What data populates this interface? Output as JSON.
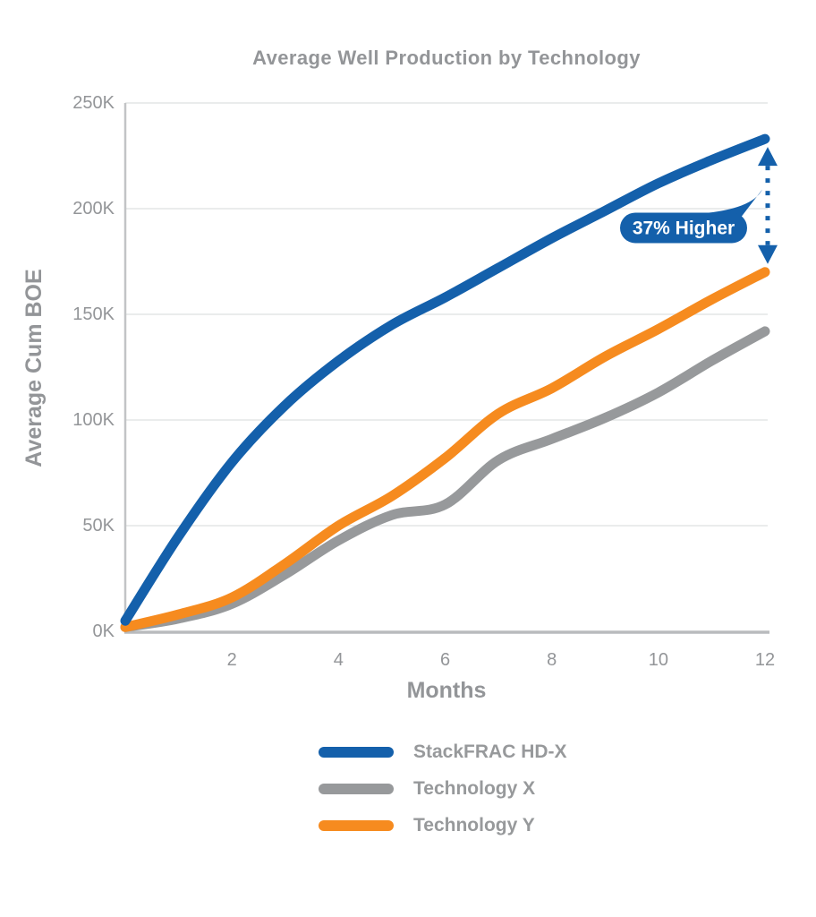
{
  "title": "Average Well Production by Technology",
  "chart_data": {
    "type": "line",
    "title": "Average Well Production by Technology",
    "xlabel": "Months",
    "ylabel": "Average Cum BOE",
    "xlim": [
      0,
      12
    ],
    "ylim": [
      0,
      250
    ],
    "grid": "horizontal-only",
    "legend_position": "bottom",
    "x": [
      0,
      1,
      2,
      3,
      4,
      5,
      6,
      7,
      8,
      9,
      10,
      11,
      12
    ],
    "x_ticks": [
      2,
      4,
      6,
      8,
      10,
      12
    ],
    "x_tick_labels": [
      "2",
      "4",
      "6",
      "8",
      "10",
      "12"
    ],
    "y_ticks": [
      0,
      50,
      100,
      150,
      200,
      250
    ],
    "y_tick_labels": [
      "0K",
      "50K",
      "100K",
      "150K",
      "200K",
      "250K"
    ],
    "value_unit": "thousand BOE",
    "series": [
      {
        "name": "StackFRAC HD-X",
        "color": "#1460AB",
        "values": [
          5,
          45,
          80,
          107,
          128,
          145,
          158,
          172,
          186,
          199,
          212,
          223,
          233
        ]
      },
      {
        "name": "Technology X",
        "color": "#97999B",
        "values": [
          2,
          6,
          13,
          27,
          43,
          55,
          60,
          81,
          91,
          101,
          113,
          128,
          142
        ]
      },
      {
        "name": "Technology Y",
        "color": "#F68B1F",
        "values": [
          2,
          8,
          16,
          32,
          50,
          64,
          82,
          103,
          115,
          130,
          143,
          157,
          170
        ]
      }
    ],
    "annotation": {
      "label": "37% Higher",
      "at_month": 12,
      "from_series": "StackFRAC HD-X",
      "to_series": "Technology Y",
      "bubble_color": "#1460AB",
      "text_color": "#FFFFFF",
      "arrow_style": "dashed-double-headed"
    }
  },
  "colors": {
    "background": "#FFFFFF",
    "axis": "#C2C4C6",
    "gridline": "#E4E5E6",
    "text": "#939598"
  }
}
